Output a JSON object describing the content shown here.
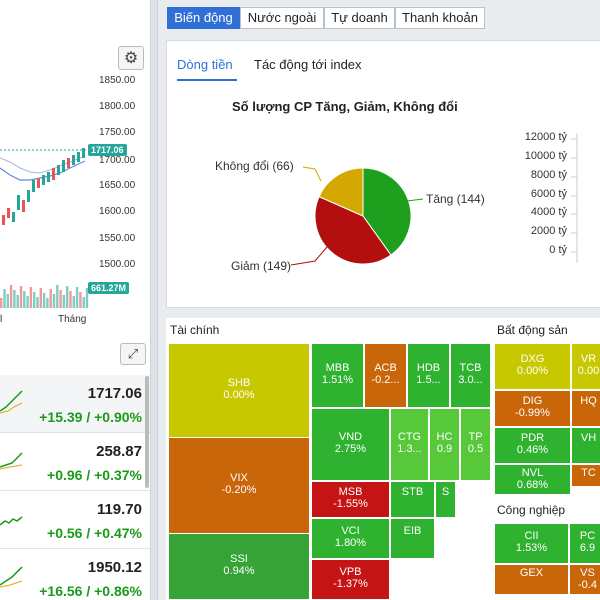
{
  "tabs": [
    "Biến động",
    "Nước ngoài",
    "Tự doanh",
    "Thanh khoản"
  ],
  "subtabs": [
    "Dòng tiền",
    "Tác động tới index"
  ],
  "index_chart": {
    "y_ticks": [
      "1850.00",
      "1800.00",
      "1750.00",
      "1700.00",
      "1650.00",
      "1600.00",
      "1550.00",
      "1500.00"
    ],
    "last_price": "1717.06",
    "volume_badge": "661.27M",
    "x_labels": [
      "l",
      "Tháng"
    ],
    "colors": {
      "up": "#26a69a",
      "down": "#ef5350",
      "price_badge": "#26a69a",
      "volume_badge": "#26a69a"
    }
  },
  "indices": [
    {
      "value": "1717.06",
      "change": "+15.39 / +0.90%"
    },
    {
      "value": "258.87",
      "change": "+0.96 / +0.37%"
    },
    {
      "value": "119.70",
      "change": "+0.56 / +0.47%"
    },
    {
      "value": "1950.12",
      "change": "+16.56 / +0.86%"
    }
  ],
  "pie": {
    "title": "Số lượng CP Tăng, Giảm, Không đổi",
    "labels": [
      "Tăng (144)",
      "Giảm (149)",
      "Không đổi (66)"
    ],
    "values": [
      144,
      149,
      66
    ],
    "colors": [
      "#1ea01e",
      "#b30f0f",
      "#d4a800"
    ]
  },
  "bar_axis": [
    "12000 tỷ",
    "10000 tỷ",
    "8000 tỷ",
    "6000 tỷ",
    "4000 tỷ",
    "2000 tỷ",
    "0 tỷ"
  ],
  "treemap": {
    "sections": [
      "Tài chính",
      "Bất động sản",
      "Công nghiệp"
    ],
    "tiles": [
      {
        "name": "SHB",
        "pct": "0.00%"
      },
      {
        "name": "VIX",
        "pct": "-0.20%"
      },
      {
        "name": "SSI",
        "pct": "0.94%"
      },
      {
        "name": "MBB",
        "pct": "1.51%"
      },
      {
        "name": "ACB",
        "pct": "-0.2..."
      },
      {
        "name": "HDB",
        "pct": "1.5..."
      },
      {
        "name": "TCB",
        "pct": "3.0..."
      },
      {
        "name": "VND",
        "pct": "2.75%"
      },
      {
        "name": "CTG",
        "pct": "1.3..."
      },
      {
        "name": "HC",
        "pct": "0.9"
      },
      {
        "name": "TP",
        "pct": "0.5"
      },
      {
        "name": "MSB",
        "pct": "-1.55%"
      },
      {
        "name": "STB",
        "pct": ""
      },
      {
        "name": "S",
        "pct": ""
      },
      {
        "name": "VCI",
        "pct": "1.80%"
      },
      {
        "name": "EIB",
        "pct": ""
      },
      {
        "name": "VPB",
        "pct": "-1.37%"
      },
      {
        "name": "DXG",
        "pct": "0.00%"
      },
      {
        "name": "VR",
        "pct": "0.00"
      },
      {
        "name": "DIG",
        "pct": "-0.99%"
      },
      {
        "name": "HQ",
        "pct": ""
      },
      {
        "name": "PDR",
        "pct": "0.46%"
      },
      {
        "name": "VH",
        "pct": ""
      },
      {
        "name": "TC",
        "pct": ""
      },
      {
        "name": "NVL",
        "pct": "0.68%"
      },
      {
        "name": "CII",
        "pct": "1.53%"
      },
      {
        "name": "PC",
        "pct": "6.9"
      },
      {
        "name": "GEX",
        "pct": ""
      },
      {
        "name": "VS",
        "pct": "-0.4"
      }
    ]
  }
}
